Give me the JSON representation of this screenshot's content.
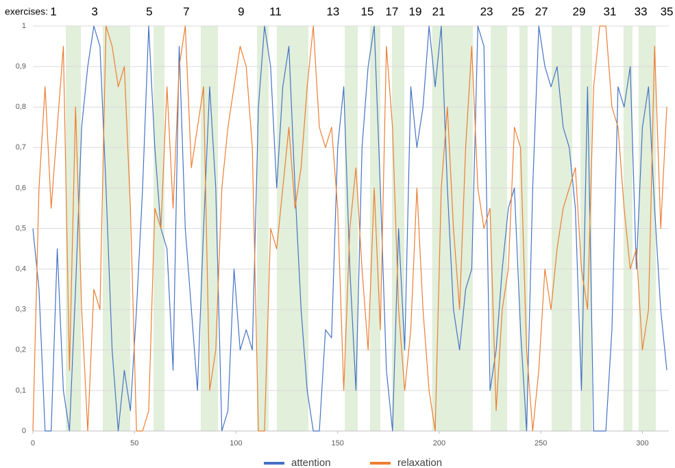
{
  "chart_data": {
    "type": "line",
    "x": [
      0,
      3,
      6,
      9,
      12,
      15,
      18,
      21,
      24,
      27,
      30,
      33,
      36,
      39,
      42,
      45,
      48,
      51,
      54,
      57,
      60,
      63,
      66,
      69,
      72,
      75,
      78,
      81,
      84,
      87,
      90,
      93,
      96,
      99,
      102,
      105,
      108,
      111,
      114,
      117,
      120,
      123,
      126,
      129,
      132,
      135,
      138,
      141,
      144,
      147,
      150,
      153,
      156,
      159,
      162,
      165,
      168,
      171,
      174,
      177,
      180,
      183,
      186,
      189,
      192,
      195,
      198,
      201,
      204,
      207,
      210,
      213,
      216,
      219,
      222,
      225,
      228,
      231,
      234,
      237,
      240,
      243,
      246,
      249,
      252,
      255,
      258,
      261,
      264,
      267,
      270,
      273,
      276,
      279,
      282,
      285,
      288,
      291,
      294,
      297,
      300,
      303,
      306,
      309,
      312
    ],
    "series": [
      {
        "name": "attention",
        "color": "#4472c4",
        "values": [
          0.5,
          0.35,
          0.0,
          0.0,
          0.45,
          0.1,
          0.0,
          0.35,
          0.75,
          0.9,
          1.0,
          0.95,
          0.6,
          0.2,
          0.0,
          0.15,
          0.05,
          0.3,
          0.6,
          1.0,
          0.7,
          0.5,
          0.45,
          0.15,
          0.95,
          0.5,
          0.3,
          0.1,
          0.5,
          0.85,
          0.6,
          0.0,
          0.05,
          0.4,
          0.2,
          0.25,
          0.2,
          0.8,
          1.0,
          0.9,
          0.6,
          0.85,
          0.95,
          0.6,
          0.3,
          0.1,
          0.0,
          0.0,
          0.25,
          0.23,
          0.7,
          0.85,
          0.4,
          0.1,
          0.7,
          0.9,
          1.0,
          0.6,
          0.15,
          0.0,
          0.5,
          0.2,
          0.85,
          0.7,
          0.8,
          1.0,
          0.85,
          1.0,
          0.6,
          0.3,
          0.2,
          0.35,
          0.4,
          1.0,
          0.95,
          0.1,
          0.2,
          0.4,
          0.55,
          0.6,
          0.25,
          0.0,
          0.6,
          1.0,
          0.9,
          0.85,
          0.9,
          0.75,
          0.7,
          0.55,
          0.1,
          0.85,
          0.0,
          0.0,
          0.0,
          0.25,
          0.85,
          0.8,
          0.9,
          0.4,
          0.75,
          0.85,
          0.55,
          0.3,
          0.15
        ]
      },
      {
        "name": "relaxation",
        "color": "#ed7d31",
        "values": [
          0.0,
          0.6,
          0.85,
          0.55,
          0.75,
          0.95,
          0.15,
          0.8,
          0.3,
          0.0,
          0.35,
          0.3,
          1.0,
          0.95,
          0.85,
          0.9,
          0.55,
          0.0,
          0.0,
          0.05,
          0.55,
          0.5,
          0.85,
          0.55,
          0.9,
          1.0,
          0.65,
          0.75,
          0.85,
          0.1,
          0.2,
          0.6,
          0.75,
          0.85,
          0.95,
          0.9,
          0.7,
          0.0,
          0.0,
          0.5,
          0.45,
          0.6,
          0.75,
          0.55,
          0.65,
          0.85,
          1.0,
          0.75,
          0.7,
          0.75,
          0.55,
          0.1,
          0.5,
          0.65,
          0.4,
          0.2,
          0.6,
          0.25,
          0.95,
          0.75,
          0.3,
          0.1,
          0.25,
          0.6,
          0.3,
          0.1,
          0.0,
          0.6,
          0.8,
          0.5,
          0.3,
          0.7,
          0.95,
          0.6,
          0.5,
          0.55,
          0.05,
          0.3,
          0.4,
          0.75,
          0.7,
          0.2,
          0.0,
          0.15,
          0.4,
          0.3,
          0.45,
          0.55,
          0.6,
          0.65,
          0.4,
          0.3,
          0.85,
          1.0,
          1.0,
          0.8,
          0.75,
          0.55,
          0.4,
          0.45,
          0.2,
          0.3,
          0.95,
          0.5,
          0.8
        ]
      }
    ],
    "bands": [
      {
        "start": 16.2,
        "end": 23.6
      },
      {
        "start": 34.4,
        "end": 47.9
      },
      {
        "start": 59.4,
        "end": 64.8
      },
      {
        "start": 82.6,
        "end": 91.1
      },
      {
        "start": 110.3,
        "end": 116
      },
      {
        "start": 120.1,
        "end": 135.6
      },
      {
        "start": 153.5,
        "end": 159.9
      },
      {
        "start": 165.9,
        "end": 171
      },
      {
        "start": 176.7,
        "end": 182.8
      },
      {
        "start": 196.5,
        "end": 216.5
      },
      {
        "start": 225.3,
        "end": 233.4
      },
      {
        "start": 239.5,
        "end": 243.5
      },
      {
        "start": 255.3,
        "end": 265.4
      },
      {
        "start": 269.5,
        "end": 275.2
      },
      {
        "start": 290.7,
        "end": 295.1
      },
      {
        "start": 298.1,
        "end": 306.6
      }
    ],
    "band_color": "#e2efda",
    "exercises_label": "exercises:",
    "x2ticks": [
      {
        "value": 10.1,
        "label": "1"
      },
      {
        "value": 30.4,
        "label": "3"
      },
      {
        "value": 57.3,
        "label": "5"
      },
      {
        "value": 75.5,
        "label": "7"
      },
      {
        "value": 102.5,
        "label": "9"
      },
      {
        "value": 119.4,
        "label": "11"
      },
      {
        "value": 147.7,
        "label": "13"
      },
      {
        "value": 164.6,
        "label": "15"
      },
      {
        "value": 176.7,
        "label": "17"
      },
      {
        "value": 188.2,
        "label": "19"
      },
      {
        "value": 199.7,
        "label": "21"
      },
      {
        "value": 223.3,
        "label": "23"
      },
      {
        "value": 238.8,
        "label": "25"
      },
      {
        "value": 250.3,
        "label": "27"
      },
      {
        "value": 268.8,
        "label": "29"
      },
      {
        "value": 284,
        "label": "31"
      },
      {
        "value": 299.2,
        "label": "33"
      },
      {
        "value": 312,
        "label": "35"
      }
    ],
    "xlim": [
      0,
      313
    ],
    "xticks": [
      0,
      50,
      100,
      150,
      200,
      250,
      300
    ],
    "ylim": [
      0,
      1
    ],
    "yticks": [
      0,
      {
        "value": 0.1,
        "label": "0,1"
      },
      {
        "value": 0.2,
        "label": "0,2"
      },
      {
        "value": 0.3,
        "label": "0,3"
      },
      {
        "value": 0.4,
        "label": "0,4"
      },
      {
        "value": 0.5,
        "label": "0,5"
      },
      {
        "value": 0.6,
        "label": "0,6"
      },
      {
        "value": 0.7,
        "label": "0,7"
      },
      {
        "value": 0.8,
        "label": "0,8"
      },
      {
        "value": 0.9,
        "label": "0,9"
      },
      1
    ],
    "grid": true,
    "legend": "bottom"
  }
}
